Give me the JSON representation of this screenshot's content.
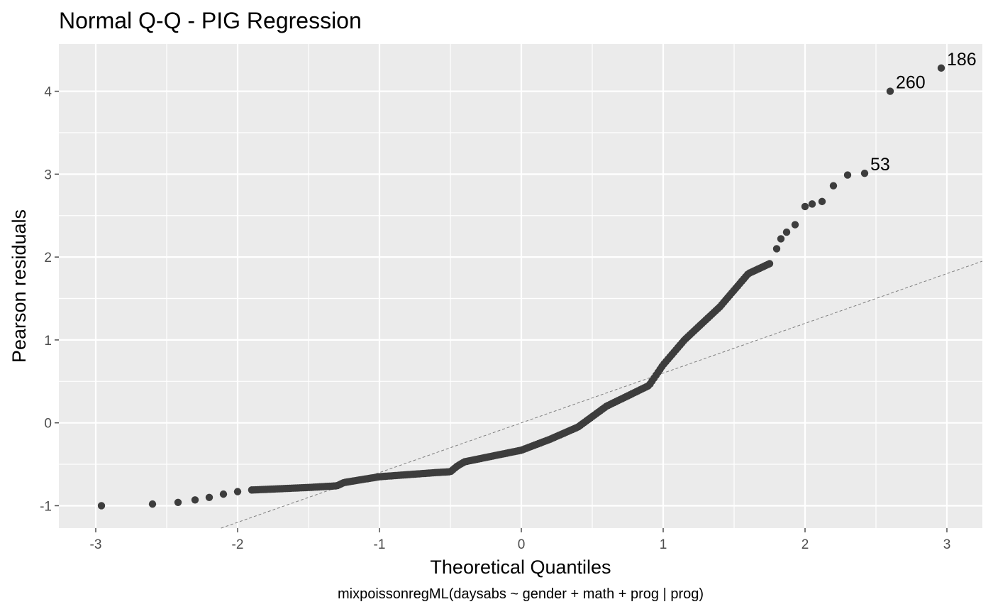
{
  "chart_data": {
    "type": "scatter",
    "title": "Normal Q-Q - PIG Regression",
    "xlabel": "Theoretical Quantiles",
    "ylabel": "Pearson residuals",
    "caption": "mixpoissonregML(daysabs ~ gender + math + prog | prog)",
    "xlim": [
      -3.26,
      3.25
    ],
    "ylim": [
      -1.27,
      4.57
    ],
    "x_ticks": [
      {
        "value": -3,
        "label": "-3"
      },
      {
        "value": -2,
        "label": "-2"
      },
      {
        "value": -1,
        "label": "-1"
      },
      {
        "value": 0,
        "label": "0"
      },
      {
        "value": 1,
        "label": "1"
      },
      {
        "value": 2,
        "label": "2"
      },
      {
        "value": 3,
        "label": "3"
      }
    ],
    "y_ticks": [
      {
        "value": -1,
        "label": "-1"
      },
      {
        "value": 0,
        "label": "0"
      },
      {
        "value": 1,
        "label": "1"
      },
      {
        "value": 2,
        "label": "2"
      },
      {
        "value": 3,
        "label": "3"
      },
      {
        "value": 4,
        "label": "4"
      }
    ],
    "grid": true,
    "reference_line": {
      "intercept": 0.0,
      "slope": 0.6,
      "style": "dashed",
      "color": "#7f7f7f"
    },
    "colors": {
      "panel": "#ebebeb",
      "grid": "#ffffff",
      "point": "#3d3d3d",
      "tick": "#4d4d4d"
    },
    "labeled_points": [
      {
        "x": 2.96,
        "y": 4.28,
        "label": "186"
      },
      {
        "x": 2.6,
        "y": 4.0,
        "label": "260"
      },
      {
        "x": 2.42,
        "y": 3.01,
        "label": "53"
      }
    ],
    "curve_anchors": [
      [
        -2.96,
        -1.0
      ],
      [
        -2.6,
        -0.98
      ],
      [
        -2.42,
        -0.96
      ],
      [
        -2.3,
        -0.93
      ],
      [
        -2.2,
        -0.9
      ],
      [
        -2.1,
        -0.86
      ],
      [
        -2.0,
        -0.83
      ],
      [
        -1.9,
        -0.81
      ],
      [
        -1.5,
        -0.78
      ],
      [
        -1.3,
        -0.76
      ],
      [
        -1.25,
        -0.72
      ],
      [
        -1.0,
        -0.65
      ],
      [
        -0.6,
        -0.6
      ],
      [
        -0.5,
        -0.59
      ],
      [
        -0.45,
        -0.52
      ],
      [
        -0.4,
        -0.47
      ],
      [
        -0.2,
        -0.4
      ],
      [
        0.0,
        -0.33
      ],
      [
        0.2,
        -0.2
      ],
      [
        0.4,
        -0.05
      ],
      [
        0.6,
        0.2
      ],
      [
        0.9,
        0.45
      ],
      [
        1.0,
        0.7
      ],
      [
        1.15,
        1.0
      ],
      [
        1.4,
        1.4
      ],
      [
        1.6,
        1.8
      ],
      [
        1.75,
        1.92
      ]
    ],
    "series": [
      {
        "upper_points": [
          [
            1.8,
            2.1
          ],
          [
            1.83,
            2.22
          ],
          [
            1.87,
            2.3
          ],
          [
            1.93,
            2.39
          ],
          [
            2.0,
            2.61
          ],
          [
            2.05,
            2.64
          ],
          [
            2.12,
            2.67
          ],
          [
            2.2,
            2.86
          ],
          [
            2.3,
            2.99
          ],
          [
            2.42,
            3.01
          ],
          [
            2.6,
            4.0
          ],
          [
            2.96,
            4.28
          ]
        ]
      }
    ]
  }
}
